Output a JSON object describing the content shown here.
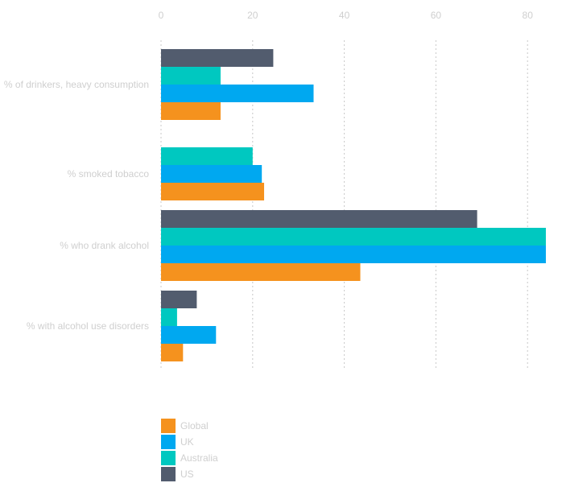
{
  "chart_data": {
    "type": "bar",
    "orientation": "horizontal",
    "title": "",
    "xlabel": "",
    "ylabel": "",
    "xlim": [
      0,
      84
    ],
    "x_ticks": [
      0,
      20,
      40,
      60,
      80
    ],
    "grid": true,
    "legend_position": "bottom-left",
    "categories": [
      "% of drinkers, heavy consumption",
      "% smoked tobacco",
      "% who drank alcohol",
      "% with alcohol use disorders"
    ],
    "series": [
      {
        "name": "US",
        "color": "#525c6e",
        "values": [
          24.5,
          null,
          69,
          7.8
        ]
      },
      {
        "name": "Australia",
        "color": "#00c8c0",
        "values": [
          13,
          20,
          84,
          3.5
        ]
      },
      {
        "name": "UK",
        "color": "#00a8f0",
        "values": [
          33.3,
          22,
          84,
          12
        ]
      },
      {
        "name": "Global",
        "color": "#f5921e",
        "values": [
          13,
          22.5,
          43.5,
          4.8
        ]
      }
    ],
    "legend_order": [
      "Global",
      "UK",
      "Australia",
      "US"
    ]
  }
}
